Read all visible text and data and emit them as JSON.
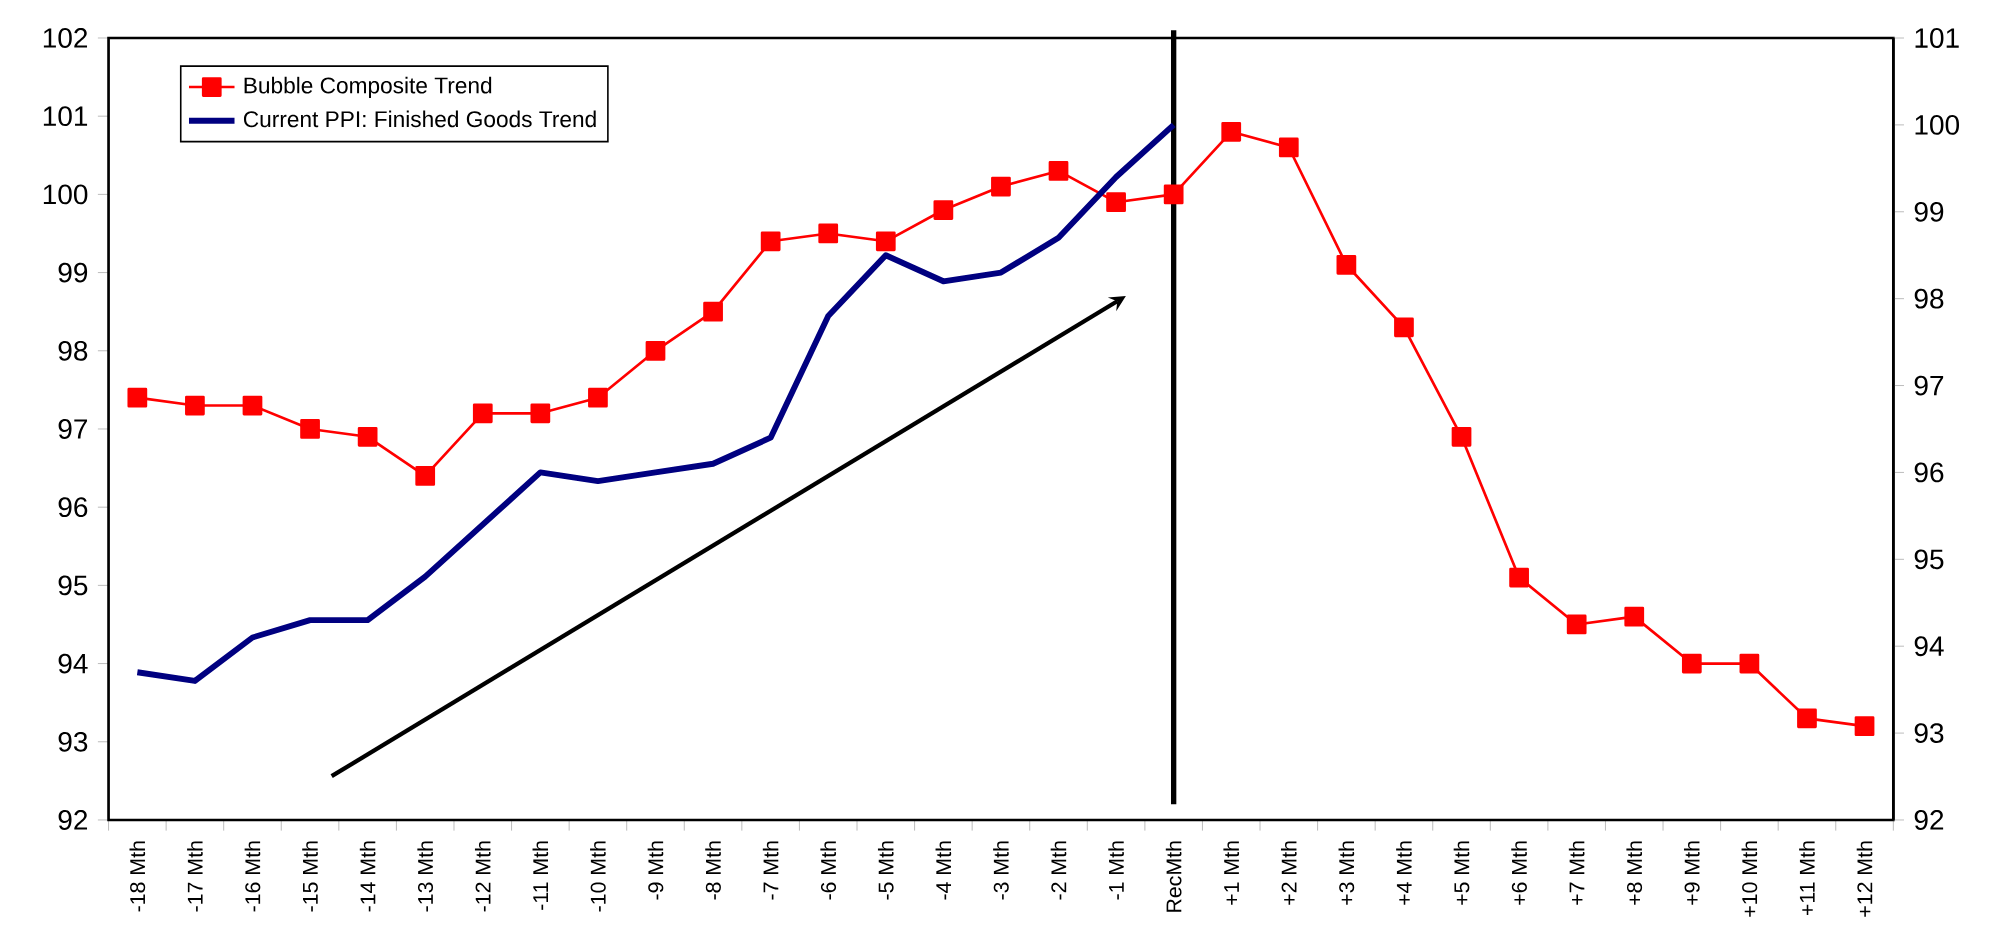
{
  "chart_data": {
    "type": "line",
    "categories": [
      "-18 Mth",
      "-17 Mth",
      "-16 Mth",
      "-15 Mth",
      "-14 Mth",
      "-13 Mth",
      "-12 Mth",
      "-11 Mth",
      "-10 Mth",
      "-9 Mth",
      "-8 Mth",
      "-7 Mth",
      "-6 Mth",
      "-5 Mth",
      "-4 Mth",
      "-3 Mth",
      "-2 Mth",
      "-1 Mth",
      "RecMth",
      "+1 Mth",
      "+2 Mth",
      "+3 Mth",
      "+4 Mth",
      "+5 Mth",
      "+6 Mth",
      "+7 Mth",
      "+8 Mth",
      "+9 Mth",
      "+10 Mth",
      "+11 Mth",
      "+12 Mth"
    ],
    "series": [
      {
        "name": "Bubble Composite Trend",
        "color": "#ff0000",
        "marker": "square",
        "values": [
          97.4,
          97.3,
          97.3,
          97.0,
          96.9,
          96.4,
          97.2,
          97.2,
          97.4,
          98.0,
          98.5,
          99.4,
          99.5,
          99.4,
          99.8,
          100.1,
          100.3,
          99.9,
          100.0,
          100.8,
          100.6,
          99.1,
          98.3,
          96.9,
          95.1,
          94.5,
          94.6,
          94.0,
          94.0,
          93.3,
          93.2
        ]
      },
      {
        "name": "Current PPI: Finished Goods Trend",
        "color": "#000080",
        "axis": "y2",
        "marker": "none",
        "values": [
          93.7,
          93.6,
          94.1,
          94.3,
          94.3,
          94.8,
          95.4,
          96.0,
          95.9,
          96.0,
          96.1,
          96.4,
          97.8,
          98.5,
          98.2,
          98.3,
          98.7,
          99.4,
          100.0,
          null,
          null,
          null,
          null,
          null,
          null,
          null,
          null,
          null,
          null,
          null,
          null
        ]
      }
    ],
    "ylim": [
      92,
      102
    ],
    "yticks": [
      92,
      93,
      94,
      95,
      96,
      97,
      98,
      99,
      100,
      101,
      102
    ],
    "y2lim": [
      92,
      101
    ],
    "y2ticks": [
      92,
      93,
      94,
      95,
      96,
      97,
      98,
      99,
      100,
      101
    ],
    "ref_lines": [
      {
        "axis": "x",
        "value": "RecMth",
        "color": "#000000"
      }
    ],
    "legend": "top left",
    "grid": false
  }
}
